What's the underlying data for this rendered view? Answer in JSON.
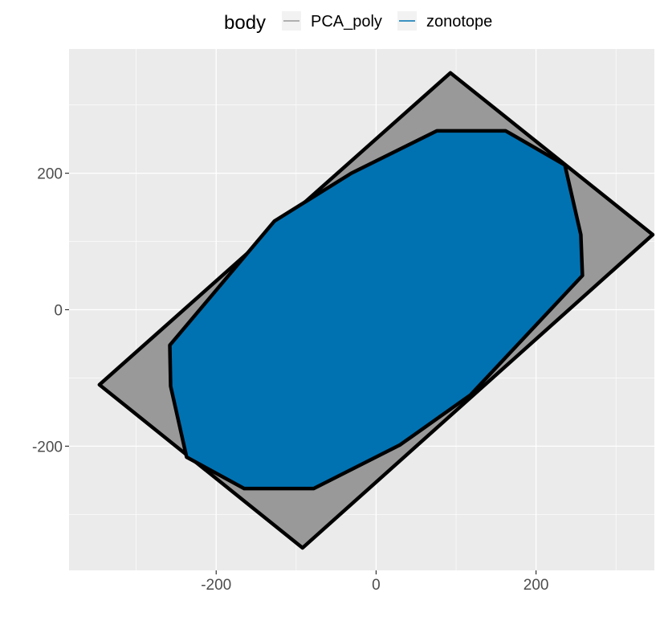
{
  "chart_data": {
    "type": "polygon",
    "title": "",
    "xlabel": "",
    "ylabel": "",
    "xlim": [
      -384,
      348
    ],
    "ylim": [
      -382,
      382
    ],
    "x_ticks": [
      -200,
      0,
      200
    ],
    "y_ticks": [
      -200,
      0,
      200
    ],
    "x_tick_labels": [
      "-200",
      "0",
      "200"
    ],
    "y_tick_labels": [
      "-200",
      "0",
      "200"
    ],
    "grid": true,
    "legend": {
      "title": "body",
      "position": "top",
      "entries": [
        {
          "label": "PCA_poly",
          "color": "#999999"
        },
        {
          "label": "zonotope",
          "color": "#0072b2"
        }
      ]
    },
    "series": [
      {
        "name": "PCA_poly",
        "fill": "#999999",
        "outline": "#000000",
        "points": [
          [
            93,
            347
          ],
          [
            346,
            110
          ],
          [
            -92,
            -349
          ],
          [
            -346,
            -110
          ]
        ]
      },
      {
        "name": "zonotope",
        "fill": "#0072b2",
        "outline": "#000000",
        "points": [
          [
            76,
            262
          ],
          [
            162,
            262
          ],
          [
            236,
            212
          ],
          [
            256,
            110
          ],
          [
            258,
            50
          ],
          [
            118,
            -125
          ],
          [
            30,
            -198
          ],
          [
            -78,
            -262
          ],
          [
            -165,
            -262
          ],
          [
            -237,
            -216
          ],
          [
            -257,
            -112
          ],
          [
            -258,
            -52
          ],
          [
            -127,
            130
          ],
          [
            -31,
            200
          ]
        ]
      }
    ]
  }
}
